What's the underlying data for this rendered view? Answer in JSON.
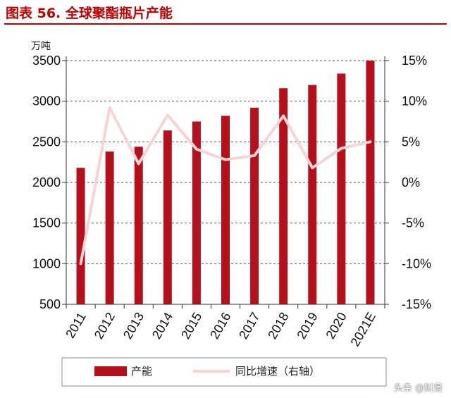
{
  "title": "图表 56. 全球聚酯瓶片产能",
  "watermark": "头条 @财是",
  "colors": {
    "bar": "#b5111d",
    "line": "#f7d4d4",
    "title": "#c00000"
  },
  "chart_data": {
    "type": "bar",
    "categories": [
      "2011",
      "2012",
      "2013",
      "2014",
      "2015",
      "2016",
      "2017",
      "2018",
      "2019",
      "2020",
      "2021E"
    ],
    "left_axis_unit": "万吨",
    "y_left_ticks": [
      "3500",
      "3000",
      "2500",
      "2000",
      "1500",
      "1000",
      "500"
    ],
    "y_right_ticks": [
      "15%",
      "10%",
      "5%",
      "0%",
      "-5%",
      "-10%",
      "-15%"
    ],
    "ylim_left": [
      500,
      3500
    ],
    "ylim_right": [
      -15,
      15
    ],
    "grid": true,
    "legend_position": "bottom",
    "series": [
      {
        "name": "产能",
        "type": "bar",
        "axis": "left",
        "values": [
          2180,
          2380,
          2440,
          2640,
          2750,
          2820,
          2920,
          3160,
          3200,
          3340,
          3500
        ]
      },
      {
        "name": "同比增速（右轴）",
        "type": "line",
        "axis": "right",
        "values": [
          -10,
          9.2,
          2.3,
          8.3,
          4.1,
          2.8,
          3.3,
          8.2,
          1.8,
          4.2,
          5.0
        ]
      }
    ]
  }
}
